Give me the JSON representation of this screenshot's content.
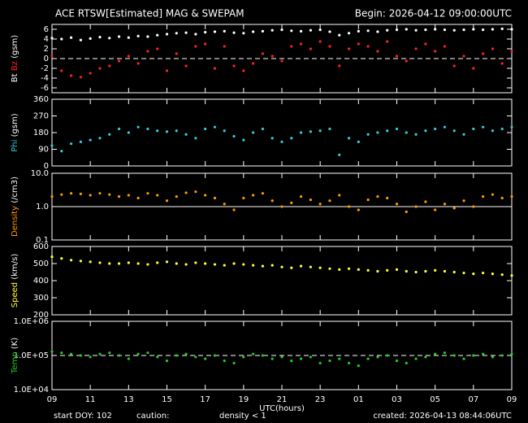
{
  "header": {
    "title": "ACE RTSW[Estimated] MAG & SWEPAM",
    "begin": "Begin: 2026-04-12 09:00:00UTC"
  },
  "footer": {
    "start": "start DOY: 102",
    "caution": "caution:",
    "caution_note": "density < 1",
    "caution_color": "#ff9900",
    "created": "created: 2026-04-13 08:44:06UTC"
  },
  "chart_data": [
    {
      "type": "scatter",
      "ylabel": "(gsm)",
      "ylim": [
        -7,
        7
      ],
      "yticks": [
        -6,
        -4,
        -2,
        0,
        2,
        4,
        6
      ],
      "hline": {
        "value": 0,
        "dash": true
      },
      "xlim": [
        0,
        24
      ],
      "xticks": [
        0,
        2,
        4,
        6,
        8,
        10,
        12,
        14,
        16,
        18,
        20,
        22,
        24
      ],
      "x": [
        0,
        0.5,
        1,
        1.5,
        2,
        2.5,
        3,
        3.5,
        4,
        4.5,
        5,
        5.5,
        6,
        6.5,
        7,
        7.5,
        8,
        8.5,
        9,
        9.5,
        10,
        10.5,
        11,
        11.5,
        12,
        12.5,
        13,
        13.5,
        14,
        14.5,
        15,
        15.5,
        16,
        16.5,
        17,
        17.5,
        18,
        18.5,
        19,
        19.5,
        20,
        20.5,
        21,
        21.5,
        22,
        22.5,
        23,
        23.5,
        24
      ],
      "series": [
        {
          "name": "Bt",
          "color": "#ffffff",
          "values": [
            4.2,
            4.0,
            4.3,
            3.8,
            4.1,
            4.4,
            4.2,
            4.5,
            4.3,
            4.6,
            4.5,
            4.8,
            5.0,
            5.2,
            5.3,
            5.0,
            5.4,
            5.5,
            5.6,
            5.3,
            5.2,
            5.5,
            5.6,
            5.8,
            5.9,
            5.7,
            5.6,
            5.8,
            5.9,
            5.5,
            4.8,
            5.2,
            5.6,
            5.7,
            5.5,
            5.8,
            5.9,
            6.0,
            5.8,
            5.9,
            6.0,
            5.9,
            5.8,
            5.9,
            6.0,
            5.9,
            6.0,
            6.1,
            6.0
          ]
        },
        {
          "name": "Bz",
          "color": "#ff2020",
          "values": [
            0.5,
            -2.5,
            -3.5,
            -3.8,
            -3.0,
            -2.0,
            -1.5,
            -0.5,
            0.5,
            -1.0,
            1.5,
            2.0,
            -2.5,
            1.0,
            -1.5,
            2.5,
            3.0,
            -2.0,
            2.5,
            -1.5,
            -2.5,
            -1.0,
            1.0,
            0.5,
            -0.5,
            2.5,
            3.0,
            2.0,
            3.5,
            2.5,
            -1.5,
            2.0,
            3.0,
            2.5,
            1.5,
            3.5,
            0.5,
            -0.5,
            2.0,
            3.0,
            1.5,
            2.5,
            -1.5,
            0.5,
            -2.0,
            1.0,
            2.0,
            -1.0,
            1.5
          ]
        }
      ]
    },
    {
      "type": "scatter",
      "ylabel": "(gsm)",
      "ylim": [
        0,
        360
      ],
      "yticks": [
        0,
        90,
        180,
        270,
        360
      ],
      "xlim": [
        0,
        24
      ],
      "xticks": [
        0,
        2,
        4,
        6,
        8,
        10,
        12,
        14,
        16,
        18,
        20,
        22,
        24
      ],
      "x": [
        0,
        0.5,
        1,
        1.5,
        2,
        2.5,
        3,
        3.5,
        4,
        4.5,
        5,
        5.5,
        6,
        6.5,
        7,
        7.5,
        8,
        8.5,
        9,
        9.5,
        10,
        10.5,
        11,
        11.5,
        12,
        12.5,
        13,
        13.5,
        14,
        14.5,
        15,
        15.5,
        16,
        16.5,
        17,
        17.5,
        18,
        18.5,
        19,
        19.5,
        20,
        20.5,
        21,
        21.5,
        22,
        22.5,
        23,
        23.5,
        24
      ],
      "series": [
        {
          "name": "Phi",
          "color": "#33ccdd",
          "values": [
            110,
            80,
            120,
            130,
            140,
            150,
            170,
            200,
            180,
            210,
            200,
            190,
            185,
            190,
            170,
            150,
            200,
            210,
            190,
            160,
            140,
            180,
            200,
            150,
            130,
            150,
            180,
            185,
            190,
            200,
            60,
            150,
            130,
            170,
            180,
            190,
            200,
            180,
            170,
            190,
            200,
            210,
            190,
            170,
            200,
            210,
            190,
            200,
            210
          ]
        }
      ]
    },
    {
      "type": "scatter",
      "ylabel": "(/cm3)",
      "log_y": true,
      "ylim": [
        0.1,
        10
      ],
      "yticks": [
        {
          "value": 0.1,
          "label": "0.1"
        },
        {
          "value": 1,
          "label": "1.0"
        },
        {
          "value": 10,
          "label": "10.0"
        }
      ],
      "hline": {
        "value": 1,
        "dash": false
      },
      "xlim": [
        0,
        24
      ],
      "xticks": [
        0,
        2,
        4,
        6,
        8,
        10,
        12,
        14,
        16,
        18,
        20,
        22,
        24
      ],
      "x": [
        0,
        0.5,
        1,
        1.5,
        2,
        2.5,
        3,
        3.5,
        4,
        4.5,
        5,
        5.5,
        6,
        6.5,
        7,
        7.5,
        8,
        8.5,
        9,
        9.5,
        10,
        10.5,
        11,
        11.5,
        12,
        12.5,
        13,
        13.5,
        14,
        14.5,
        15,
        15.5,
        16,
        16.5,
        17,
        17.5,
        18,
        18.5,
        19,
        19.5,
        20,
        20.5,
        21,
        21.5,
        22,
        22.5,
        23,
        23.5,
        24
      ],
      "series": [
        {
          "name": "Density",
          "color": "#ff9900",
          "values": [
            2.0,
            2.3,
            2.5,
            2.4,
            2.2,
            2.5,
            2.3,
            2.0,
            2.2,
            1.8,
            2.5,
            2.2,
            1.5,
            2.0,
            2.6,
            2.8,
            2.2,
            1.8,
            1.2,
            0.8,
            1.8,
            2.2,
            2.5,
            1.5,
            1.0,
            1.3,
            2.0,
            1.6,
            1.2,
            1.5,
            2.2,
            1.0,
            0.8,
            1.6,
            2.0,
            1.8,
            1.2,
            0.7,
            1.0,
            1.4,
            0.8,
            1.2,
            0.9,
            1.5,
            1.0,
            2.0,
            2.3,
            1.8,
            2.0
          ]
        }
      ]
    },
    {
      "type": "scatter",
      "ylabel": "(km/s)",
      "ylim": [
        200,
        600
      ],
      "yticks": [
        200,
        300,
        400,
        500,
        600
      ],
      "xlim": [
        0,
        24
      ],
      "xticks": [
        0,
        2,
        4,
        6,
        8,
        10,
        12,
        14,
        16,
        18,
        20,
        22,
        24
      ],
      "x": [
        0,
        0.5,
        1,
        1.5,
        2,
        2.5,
        3,
        3.5,
        4,
        4.5,
        5,
        5.5,
        6,
        6.5,
        7,
        7.5,
        8,
        8.5,
        9,
        9.5,
        10,
        10.5,
        11,
        11.5,
        12,
        12.5,
        13,
        13.5,
        14,
        14.5,
        15,
        15.5,
        16,
        16.5,
        17,
        17.5,
        18,
        18.5,
        19,
        19.5,
        20,
        20.5,
        21,
        21.5,
        22,
        22.5,
        23,
        23.5,
        24
      ],
      "series": [
        {
          "name": "Speed",
          "color": "#ffff33",
          "values": [
            540,
            530,
            520,
            515,
            510,
            505,
            500,
            500,
            505,
            500,
            495,
            505,
            510,
            500,
            495,
            505,
            500,
            495,
            490,
            500,
            495,
            490,
            485,
            490,
            480,
            475,
            485,
            480,
            475,
            470,
            465,
            470,
            465,
            460,
            455,
            460,
            465,
            455,
            450,
            455,
            460,
            455,
            450,
            445,
            440,
            445,
            440,
            435,
            430
          ]
        }
      ]
    },
    {
      "type": "scatter",
      "ylabel": "(K)",
      "log_y": true,
      "ylim": [
        10000,
        1000000
      ],
      "yticks": [
        {
          "value": 10000,
          "label": "1.0E+04"
        },
        {
          "value": 100000,
          "label": "1.0E+05"
        },
        {
          "value": 1000000,
          "label": "1.0E+06"
        }
      ],
      "hline": {
        "value": 100000,
        "dash": true
      },
      "xlabel": "UTC(hours)",
      "xlim": [
        0,
        24
      ],
      "xticks": [
        {
          "value": 0,
          "label": "09"
        },
        {
          "value": 2,
          "label": "11"
        },
        {
          "value": 4,
          "label": "13"
        },
        {
          "value": 6,
          "label": "15"
        },
        {
          "value": 8,
          "label": "17"
        },
        {
          "value": 10,
          "label": "19"
        },
        {
          "value": 12,
          "label": "21"
        },
        {
          "value": 14,
          "label": "23"
        },
        {
          "value": 16,
          "label": "01"
        },
        {
          "value": 18,
          "label": "03"
        },
        {
          "value": 20,
          "label": "05"
        },
        {
          "value": 22,
          "label": "07"
        },
        {
          "value": 24,
          "label": "09"
        }
      ],
      "x": [
        0,
        0.5,
        1,
        1.5,
        2,
        2.5,
        3,
        3.5,
        4,
        4.5,
        5,
        5.5,
        6,
        6.5,
        7,
        7.5,
        8,
        8.5,
        9,
        9.5,
        10,
        10.5,
        11,
        11.5,
        12,
        12.5,
        13,
        13.5,
        14,
        14.5,
        15,
        15.5,
        16,
        16.5,
        17,
        17.5,
        18,
        18.5,
        19,
        19.5,
        20,
        20.5,
        21,
        21.5,
        22,
        22.5,
        23,
        23.5,
        24
      ],
      "series": [
        {
          "name": "Temp",
          "color": "#22cc22",
          "values": [
            130000,
            120000,
            110000,
            100000,
            90000,
            110000,
            120000,
            100000,
            80000,
            110000,
            120000,
            90000,
            70000,
            100000,
            110000,
            90000,
            80000,
            100000,
            70000,
            60000,
            90000,
            110000,
            100000,
            80000,
            90000,
            70000,
            80000,
            90000,
            60000,
            70000,
            80000,
            60000,
            50000,
            80000,
            90000,
            100000,
            70000,
            60000,
            80000,
            90000,
            110000,
            120000,
            100000,
            80000,
            100000,
            110000,
            90000,
            100000,
            110000
          ]
        }
      ]
    }
  ]
}
